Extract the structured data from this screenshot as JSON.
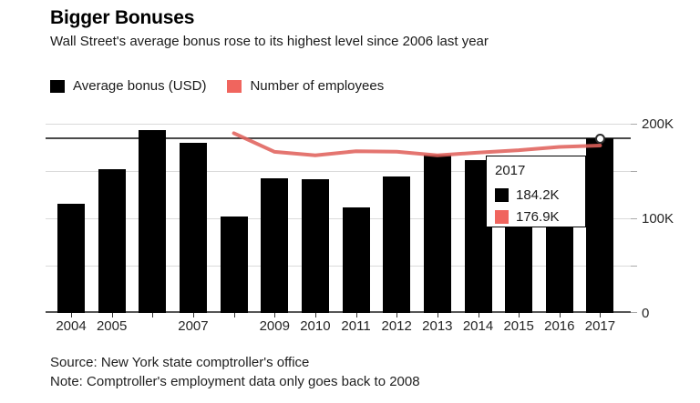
{
  "header": {
    "title": "Bigger Bonuses",
    "subtitle": "Wall Street's average bonus rose to its highest level since 2006 last year"
  },
  "legend": {
    "items": [
      {
        "label": "Average bonus (USD)",
        "color": "#000000"
      },
      {
        "label": "Number of employees",
        "color": "#f0655e"
      }
    ]
  },
  "tooltip": {
    "year": "2017",
    "bonus_value": "184.2K",
    "employees_value": "176.9K",
    "bonus_color": "#000000",
    "employees_color": "#f0655e"
  },
  "footer": {
    "source": "Source: New York state comptroller's office",
    "note": "Note: Comptroller's employment data only goes back to 2008"
  },
  "chart_data": {
    "type": "bar+line",
    "title": "Bigger Bonuses",
    "categories": [
      2004,
      2005,
      2006,
      2007,
      2008,
      2009,
      2010,
      2011,
      2012,
      2013,
      2014,
      2015,
      2016,
      2017
    ],
    "x_tick_labels": [
      "2004",
      "2005",
      "",
      "2007",
      "",
      "2009",
      "2010",
      "2011",
      "2012",
      "2013",
      "2014",
      "2015",
      "2016",
      "2017"
    ],
    "series": [
      {
        "name": "Average bonus (USD)",
        "type": "bar",
        "color": "#000000",
        "values": [
          115.4,
          151.5,
          193.5,
          180.0,
          101.5,
          142.5,
          141.0,
          111.5,
          144.5,
          167.7,
          162.0,
          146.2,
          138.2,
          184.2
        ]
      },
      {
        "name": "Number of employees",
        "type": "line",
        "color": "#e0625c",
        "start_category": 2008,
        "values": [
          190.0,
          170.3,
          166.5,
          171.0,
          170.5,
          166.5,
          169.5,
          172.0,
          175.5,
          176.9
        ]
      }
    ],
    "ylim": [
      0,
      200
    ],
    "y_tick_values": [
      0,
      50,
      100,
      150,
      200
    ],
    "y_tick_labels": [
      "0",
      "",
      "100K",
      "",
      "200K"
    ],
    "grid": true,
    "legend_position": "top-left",
    "hover": {
      "category": 2017,
      "reference_value": 184.2,
      "reference_color": "#4a4a4a"
    }
  }
}
